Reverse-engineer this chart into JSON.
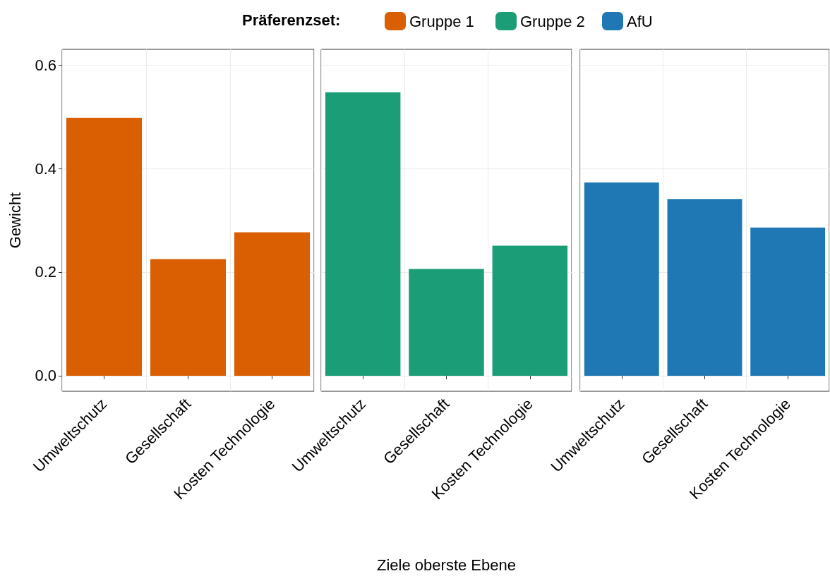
{
  "chart_data": [
    {
      "type": "bar",
      "legend_title": "Präferenzset:",
      "legend": "top",
      "ylabel": "Gewicht",
      "categories": [
        "Umweltschutz",
        "Gesellschaft",
        "Kosten Technologie"
      ],
      "series": [
        {
          "name": "Gruppe 1",
          "color": "#d95f02",
          "values": [
            0.498,
            0.225,
            0.277
          ]
        }
      ],
      "ylim": [
        -0.03,
        0.63
      ],
      "yticks": [
        {
          "value": 0,
          "label": "0.0"
        },
        0.2,
        0.4,
        0.6
      ],
      "grid": true
    },
    {
      "type": "bar",
      "legend": "top",
      "xlabel": "Ziele oberste Ebene",
      "categories": [
        "Umweltschutz",
        "Gesellschaft",
        "Kosten Technologie"
      ],
      "series": [
        {
          "name": "Gruppe 2",
          "color": "#1b9e77",
          "values": [
            0.547,
            0.206,
            0.251
          ]
        }
      ],
      "ylim": [
        -0.03,
        0.63
      ],
      "yticks": [
        0,
        0.2,
        0.4,
        0.6
      ],
      "tick_labels": "x",
      "grid": true
    },
    {
      "type": "bar",
      "legend": "top",
      "categories": [
        "Umweltschutz",
        "Gesellschaft",
        "Kosten Technologie"
      ],
      "series": [
        {
          "name": "AfU",
          "color": "#1f78b4",
          "values": [
            0.373,
            0.341,
            0.286
          ]
        }
      ],
      "ylim": [
        -0.03,
        0.63
      ],
      "yticks": [
        0,
        0.2,
        0.4,
        0.6
      ],
      "tick_labels": "x",
      "grid": true
    }
  ]
}
